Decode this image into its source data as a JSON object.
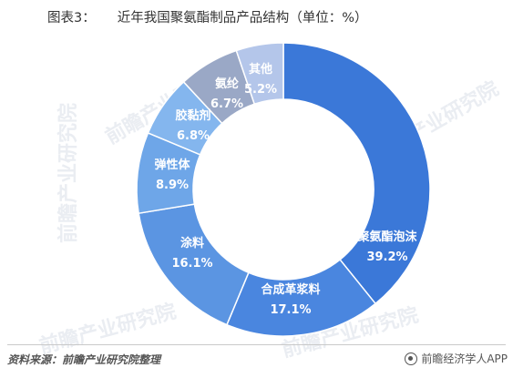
{
  "title": {
    "figure_label": "图表3：",
    "text": "近年我国聚氨酯制品产品结构（单位：%）"
  },
  "chart_data": {
    "type": "pie",
    "title": "近年我国聚氨酯制品产品结构（单位：%）",
    "unit": "%",
    "slices": [
      {
        "label": "聚氨酯泡沫",
        "value": 39.2,
        "value_label": "39.2%",
        "color": "#3b78d8"
      },
      {
        "label": "合成革浆料",
        "value": 17.1,
        "value_label": "17.1%",
        "color": "#4a86df"
      },
      {
        "label": "涂料",
        "value": 16.1,
        "value_label": "16.1%",
        "color": "#5b95e2"
      },
      {
        "label": "弹性体",
        "value": 8.9,
        "value_label": "8.9%",
        "color": "#6ea6e8"
      },
      {
        "label": "胶黏剂",
        "value": 6.8,
        "value_label": "6.8%",
        "color": "#84b6ee"
      },
      {
        "label": "氨纶",
        "value": 6.7,
        "value_label": "6.7%",
        "color": "#9aa8c6"
      },
      {
        "label": "其他",
        "value": 5.2,
        "value_label": "5.2%",
        "color": "#b4c6ea"
      }
    ],
    "start_angle_deg": 0,
    "direction": "clockwise",
    "donut": true
  },
  "watermark_text": "前瞻产业研究院",
  "footer": {
    "source": "资料来源：前瞻产业研究院整理",
    "brand": "前瞻经济学人APP",
    "brand_icon": "qianzhan-logo-icon"
  }
}
